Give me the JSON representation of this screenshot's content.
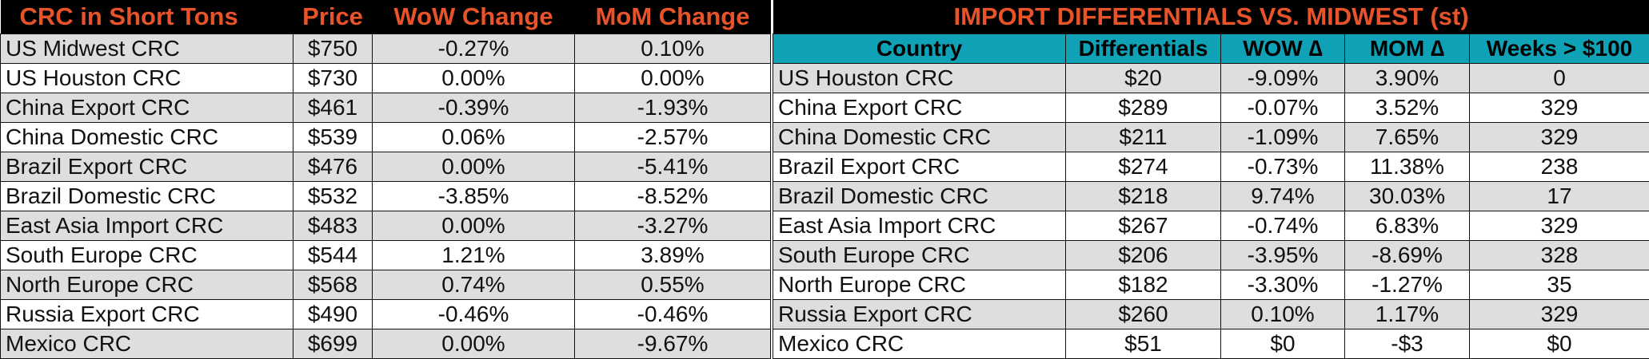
{
  "left": {
    "headers": [
      "CRC in Short Tons",
      "Price",
      "WoW Change",
      "MoM Change"
    ],
    "rows": [
      [
        "US Midwest CRC",
        "$750",
        "-0.27%",
        "0.10%"
      ],
      [
        "US Houston CRC",
        "$730",
        "0.00%",
        "0.00%"
      ],
      [
        "China Export CRC",
        "$461",
        "-0.39%",
        "-1.93%"
      ],
      [
        "China Domestic CRC",
        "$539",
        "0.06%",
        "-2.57%"
      ],
      [
        "Brazil Export CRC",
        "$476",
        "0.00%",
        "-5.41%"
      ],
      [
        "Brazil Domestic CRC",
        "$532",
        "-3.85%",
        "-8.52%"
      ],
      [
        "East Asia Import CRC",
        "$483",
        "0.00%",
        "-3.27%"
      ],
      [
        "South Europe CRC",
        "$544",
        "1.21%",
        "3.89%"
      ],
      [
        "North Europe CRC",
        "$568",
        "0.74%",
        "0.55%"
      ],
      [
        "Russia Export CRC",
        "$490",
        "-0.46%",
        "-0.46%"
      ],
      [
        "Mexico CRC",
        "$699",
        "0.00%",
        "-9.67%"
      ]
    ]
  },
  "right": {
    "title": "IMPORT DIFFERENTIALS VS. MIDWEST (st)",
    "headers": [
      "Country",
      "Differentials",
      "WOW ∆",
      "MOM ∆",
      "Weeks > $100"
    ],
    "rows": [
      [
        "US Houston CRC",
        "$20",
        "-9.09%",
        "3.90%",
        "0"
      ],
      [
        "China Export CRC",
        "$289",
        "-0.07%",
        "3.52%",
        "329"
      ],
      [
        "China Domestic CRC",
        "$211",
        "-1.09%",
        "7.65%",
        "329"
      ],
      [
        "Brazil Export CRC",
        "$274",
        "-0.73%",
        "11.38%",
        "238"
      ],
      [
        "Brazil Domestic CRC",
        "$218",
        "9.74%",
        "30.03%",
        "17"
      ],
      [
        "East Asia Import CRC",
        "$267",
        "-0.74%",
        "6.83%",
        "329"
      ],
      [
        "South Europe CRC",
        "$206",
        "-3.95%",
        "-8.69%",
        "328"
      ],
      [
        "North Europe CRC",
        "$182",
        "-3.30%",
        "-1.27%",
        "35"
      ],
      [
        "Russia Export CRC",
        "$260",
        "0.10%",
        "1.17%",
        "329"
      ],
      [
        "Mexico CRC",
        "$51",
        "$0",
        "-$3",
        "$0"
      ]
    ]
  },
  "colors": {
    "title_text": "#e8532a",
    "title_bg": "#000000",
    "header_bg": "#0fa2b6",
    "row_shade": "#dedde0",
    "row_plain": "#ffffff"
  }
}
